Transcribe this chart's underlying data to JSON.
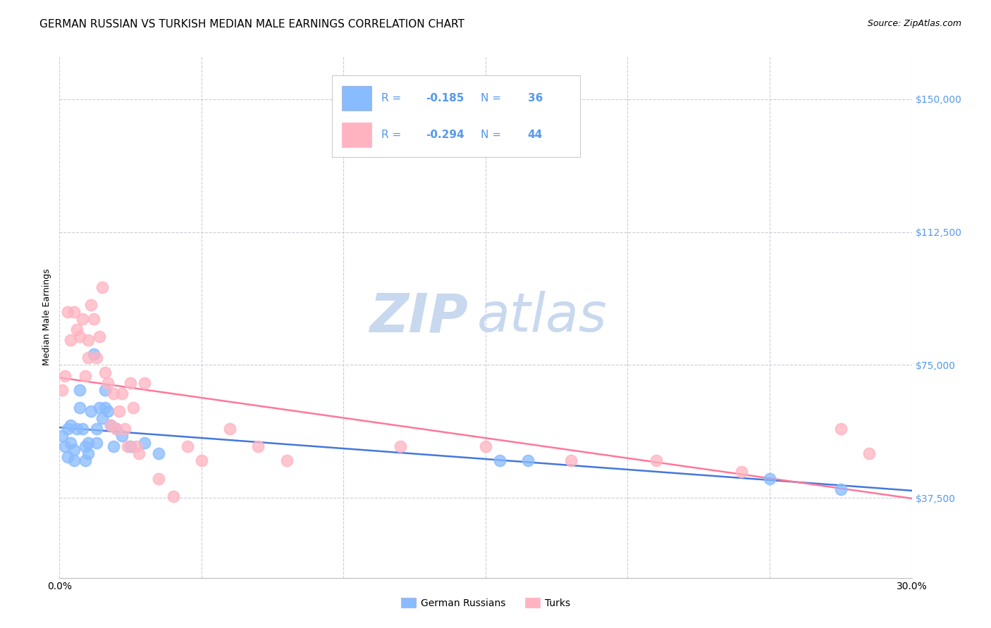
{
  "title": "GERMAN RUSSIAN VS TURKISH MEDIAN MALE EARNINGS CORRELATION CHART",
  "source": "Source: ZipAtlas.com",
  "ylabel": "Median Male Earnings",
  "ytick_values": [
    37500,
    75000,
    112500,
    150000
  ],
  "ymin": 15000,
  "ymax": 162000,
  "xmin": 0.0,
  "xmax": 0.3,
  "legend_label_blue": "German Russians",
  "legend_label_pink": "Turks",
  "blue_color": "#88BBFF",
  "pink_color": "#FFB3C1",
  "line_blue": "#4477DD",
  "line_pink": "#FF7799",
  "ytick_color": "#5599EE",
  "watermark_zip": "ZIP",
  "watermark_atlas": "atlas",
  "watermark_color": "#C8D8EE",
  "background_color": "#FFFFFF",
  "grid_color": "#CCCCDD",
  "blue_scatter_x": [
    0.001,
    0.002,
    0.003,
    0.003,
    0.004,
    0.004,
    0.005,
    0.005,
    0.006,
    0.007,
    0.007,
    0.008,
    0.009,
    0.009,
    0.01,
    0.01,
    0.011,
    0.012,
    0.013,
    0.013,
    0.014,
    0.015,
    0.016,
    0.016,
    0.017,
    0.018,
    0.019,
    0.02,
    0.022,
    0.025,
    0.03,
    0.035,
    0.155,
    0.165,
    0.25,
    0.275
  ],
  "blue_scatter_y": [
    55000,
    52000,
    57000,
    49000,
    58000,
    53000,
    51000,
    48000,
    57000,
    68000,
    63000,
    57000,
    52000,
    48000,
    53000,
    50000,
    62000,
    78000,
    57000,
    53000,
    63000,
    60000,
    68000,
    63000,
    62000,
    58000,
    52000,
    57000,
    55000,
    52000,
    53000,
    50000,
    48000,
    48000,
    43000,
    40000
  ],
  "pink_scatter_x": [
    0.001,
    0.002,
    0.003,
    0.004,
    0.005,
    0.006,
    0.007,
    0.008,
    0.009,
    0.01,
    0.01,
    0.011,
    0.012,
    0.013,
    0.014,
    0.015,
    0.016,
    0.017,
    0.018,
    0.019,
    0.02,
    0.021,
    0.022,
    0.023,
    0.024,
    0.025,
    0.026,
    0.027,
    0.028,
    0.03,
    0.035,
    0.04,
    0.045,
    0.05,
    0.06,
    0.07,
    0.08,
    0.12,
    0.15,
    0.18,
    0.21,
    0.24,
    0.275,
    0.285
  ],
  "pink_scatter_y": [
    68000,
    72000,
    90000,
    82000,
    90000,
    85000,
    83000,
    88000,
    72000,
    82000,
    77000,
    92000,
    88000,
    77000,
    83000,
    97000,
    73000,
    70000,
    58000,
    67000,
    57000,
    62000,
    67000,
    57000,
    52000,
    70000,
    63000,
    52000,
    50000,
    70000,
    43000,
    38000,
    52000,
    48000,
    57000,
    52000,
    48000,
    52000,
    52000,
    48000,
    48000,
    45000,
    57000,
    50000
  ],
  "title_fontsize": 11,
  "source_fontsize": 9,
  "axis_label_fontsize": 9,
  "tick_fontsize": 10,
  "legend_fontsize": 11,
  "watermark_fontsize": 55
}
